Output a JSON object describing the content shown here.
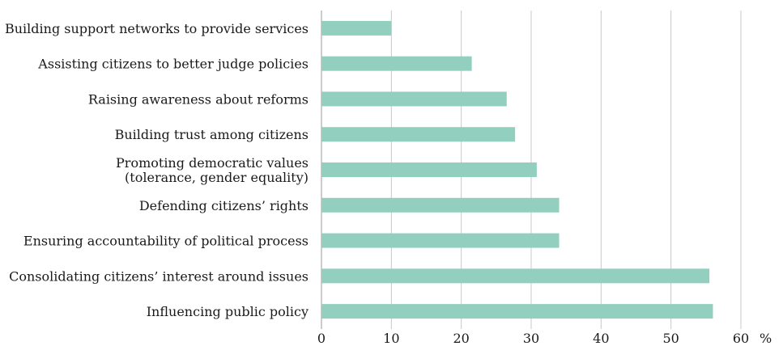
{
  "chart_data": {
    "type": "bar",
    "orientation": "horizontal",
    "categories": [
      [
        "Building support networks to provide services"
      ],
      [
        "Assisting citizens to better judge policies"
      ],
      [
        "Raising awareness about reforms"
      ],
      [
        "Building trust among citizens"
      ],
      [
        "Promoting democratic values",
        "(tolerance, gender equality)"
      ],
      [
        "Defending citizens’ rights"
      ],
      [
        "Ensuring accountability of political process"
      ],
      [
        "Consolidating citizens’ interest around issues"
      ],
      [
        "Influencing public policy"
      ]
    ],
    "values": [
      10,
      21.5,
      26.5,
      27.7,
      30.8,
      34,
      34,
      55.5,
      56
    ],
    "xlim": [
      0,
      60
    ],
    "xticks": [
      0,
      10,
      20,
      30,
      40,
      50,
      60
    ],
    "x_unit": "%",
    "grid": "vertical",
    "colors": {
      "bar": "#93cfbf",
      "grid": "#c8c8c8",
      "axis": "#9a9a9a",
      "text": "#1a1a1a"
    }
  }
}
